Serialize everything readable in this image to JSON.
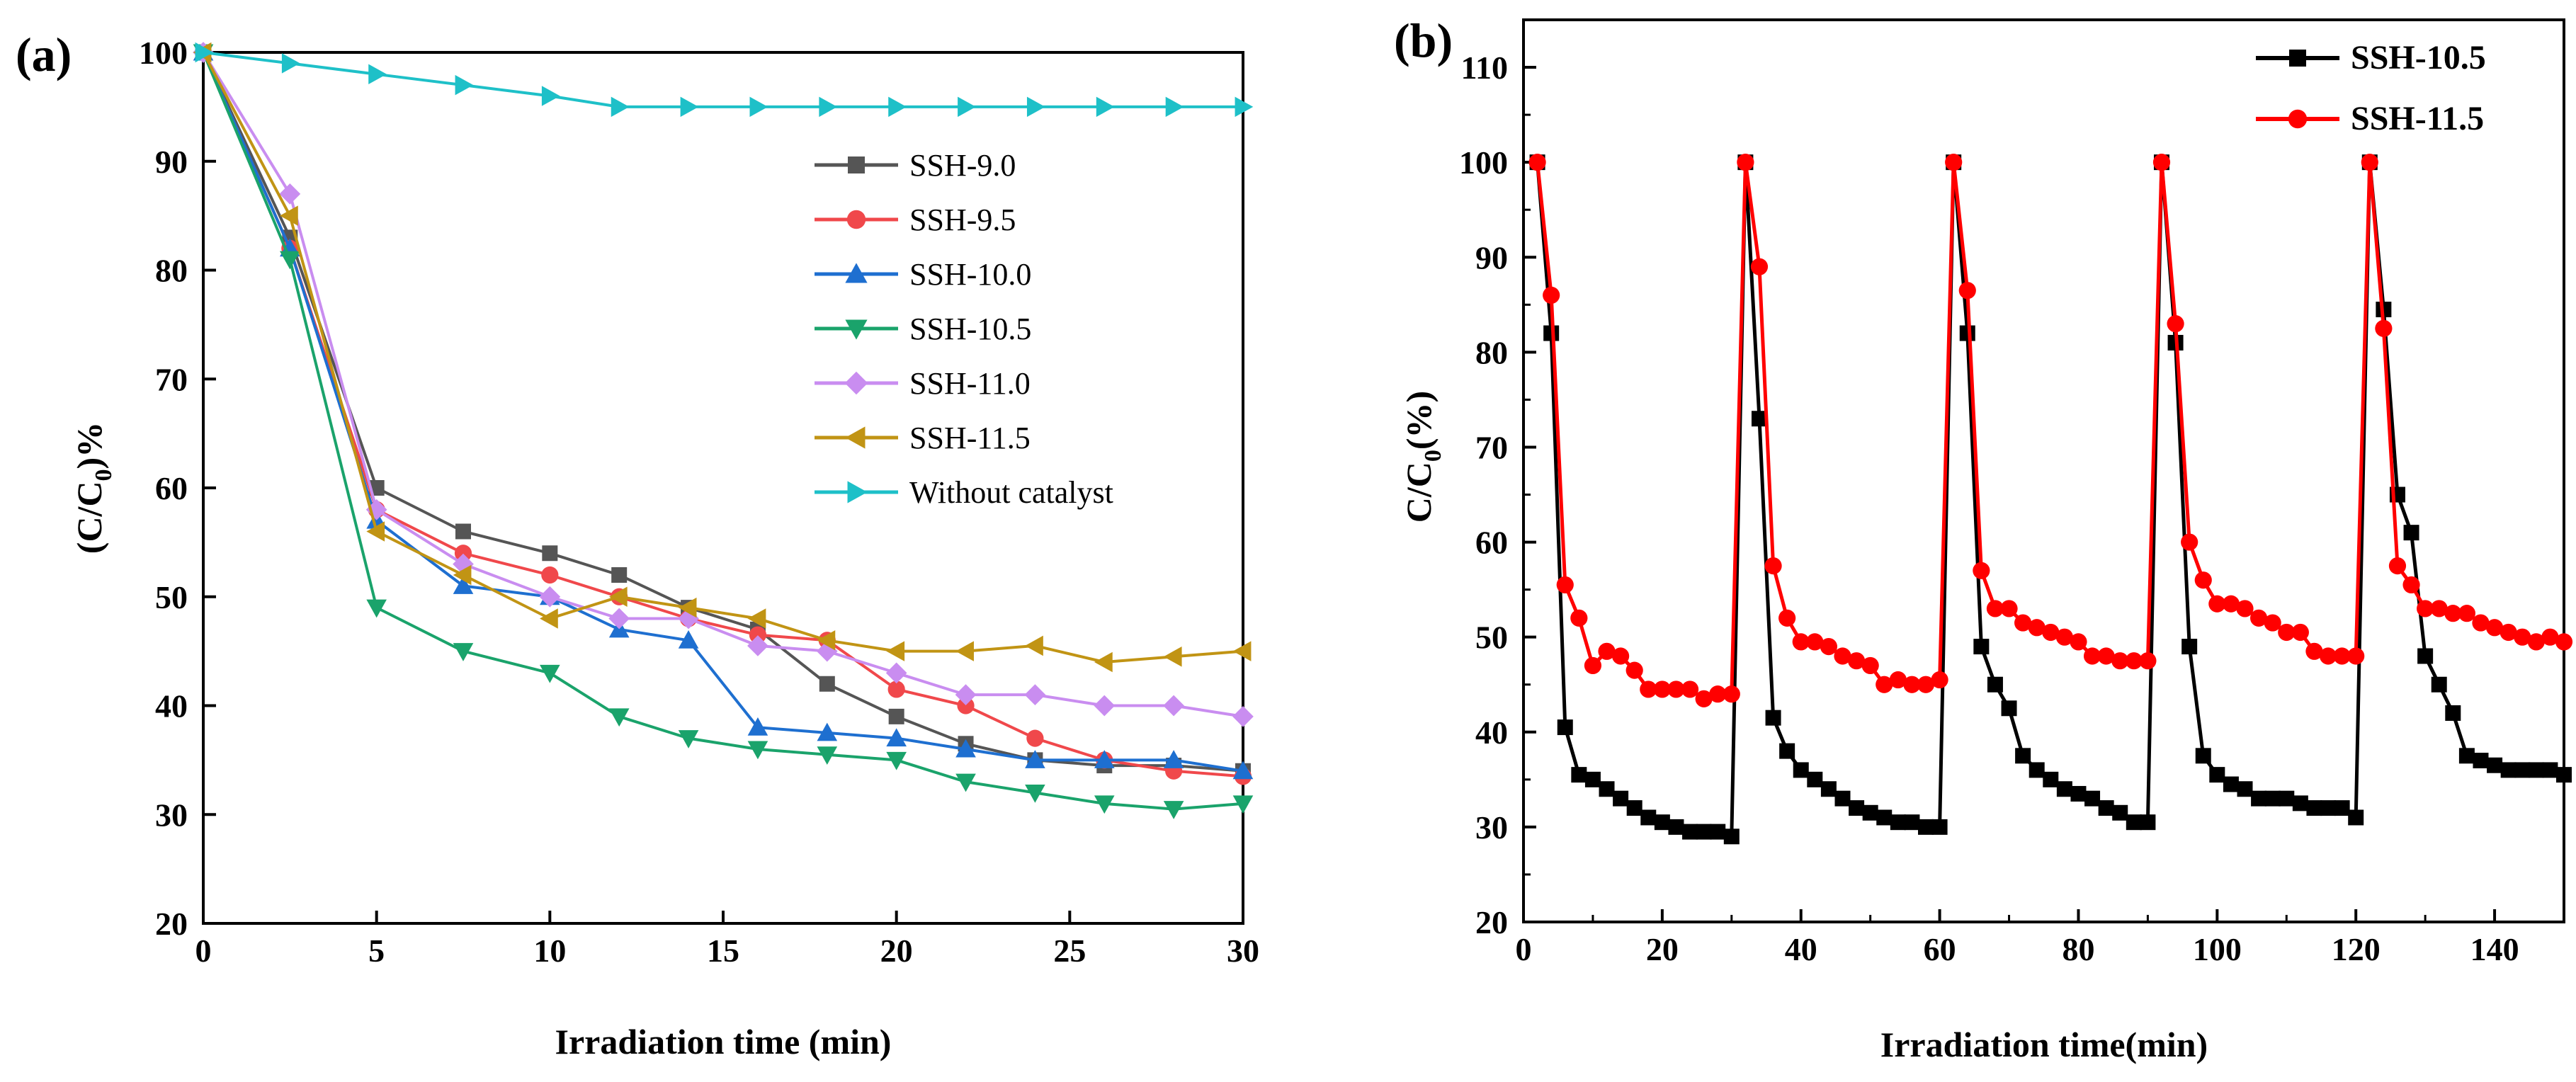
{
  "chart_data": [
    {
      "panel": "(a)",
      "type": "line",
      "title": "",
      "xlabel": "Irradiation time (min)",
      "ylabel": "(C/C0)%",
      "ylabel_parts": [
        "(C/C",
        "0",
        ")%"
      ],
      "xlim": [
        0,
        30
      ],
      "ylim": [
        20,
        100
      ],
      "xticks": [
        0,
        5,
        10,
        15,
        20,
        25,
        30
      ],
      "yticks": [
        20,
        30,
        40,
        50,
        60,
        70,
        80,
        90,
        100
      ],
      "grid": false,
      "legend_position": "right",
      "series": [
        {
          "name": "SSH-9.0",
          "color": "#555555",
          "marker": "square",
          "x": [
            0,
            2.5,
            5,
            7.5,
            10,
            12,
            14,
            16,
            18,
            20,
            22,
            24,
            26,
            28,
            30
          ],
          "y": [
            100,
            83,
            60,
            56,
            54,
            52,
            49,
            47,
            42,
            39,
            36.5,
            35,
            34.5,
            34.5,
            34
          ]
        },
        {
          "name": "SSH-9.5",
          "color": "#f0484b",
          "marker": "circle",
          "x": [
            0,
            2.5,
            5,
            7.5,
            10,
            12,
            14,
            16,
            18,
            20,
            22,
            24,
            26,
            28,
            30
          ],
          "y": [
            100,
            82,
            58,
            54,
            52,
            50,
            48,
            46.5,
            46,
            41.5,
            40,
            37,
            35,
            34,
            33.5
          ]
        },
        {
          "name": "SSH-10.0",
          "color": "#1e6fd0",
          "marker": "triangle-up",
          "x": [
            0,
            2.5,
            5,
            7.5,
            10,
            12,
            14,
            16,
            18,
            20,
            22,
            24,
            26,
            28,
            30
          ],
          "y": [
            100,
            82,
            57,
            51,
            50,
            47,
            46,
            38,
            37.5,
            37,
            36,
            35,
            35,
            35,
            34
          ]
        },
        {
          "name": "SSH-10.5",
          "color": "#1aa36b",
          "marker": "triangle-down",
          "x": [
            0,
            2.5,
            5,
            7.5,
            10,
            12,
            14,
            16,
            18,
            20,
            22,
            24,
            26,
            28,
            30
          ],
          "y": [
            100,
            81,
            49,
            45,
            43,
            39,
            37,
            36,
            35.5,
            35,
            33,
            32,
            31,
            30.5,
            31
          ]
        },
        {
          "name": "SSH-11.0",
          "color": "#c98df0",
          "marker": "diamond",
          "x": [
            0,
            2.5,
            5,
            7.5,
            10,
            12,
            14,
            16,
            18,
            20,
            22,
            24,
            26,
            28,
            30
          ],
          "y": [
            100,
            87,
            58,
            53,
            50,
            48,
            48,
            45.5,
            45,
            43,
            41,
            41,
            40,
            40,
            39
          ]
        },
        {
          "name": "SSH-11.5",
          "color": "#c19414",
          "marker": "triangle-left",
          "x": [
            0,
            2.5,
            5,
            7.5,
            10,
            12,
            14,
            16,
            18,
            20,
            22,
            24,
            26,
            28,
            30
          ],
          "y": [
            100,
            85,
            56,
            52,
            48,
            50,
            49,
            48,
            46,
            45,
            45,
            45.5,
            44,
            44.5,
            45
          ]
        },
        {
          "name": "Without catalyst",
          "color": "#1ec0c8",
          "marker": "triangle-right",
          "x": [
            0,
            2.5,
            5,
            7.5,
            10,
            12,
            14,
            16,
            18,
            20,
            22,
            24,
            26,
            28,
            30
          ],
          "y": [
            100,
            99,
            98,
            97,
            96,
            95,
            95,
            95,
            95,
            95,
            95,
            95,
            95,
            95,
            95
          ]
        }
      ]
    },
    {
      "panel": "(b)",
      "type": "line",
      "title": "",
      "xlabel": "Irradiation time(min)",
      "ylabel": "C/C0(%)",
      "ylabel_parts": [
        "C/C",
        "0",
        "(%)"
      ],
      "xlim": [
        0,
        150
      ],
      "ylim": [
        20,
        115
      ],
      "xticks": [
        0,
        20,
        40,
        60,
        80,
        100,
        120,
        140
      ],
      "yticks": [
        20,
        30,
        40,
        50,
        60,
        70,
        80,
        90,
        100,
        110
      ],
      "grid": false,
      "legend_position": "top-right",
      "series": [
        {
          "name": "SSH-10.5",
          "color": "#000000",
          "marker": "square",
          "x": [
            2,
            4,
            6,
            8,
            10,
            12,
            14,
            16,
            18,
            20,
            22,
            24,
            26,
            28,
            30,
            32,
            34,
            36,
            38,
            40,
            42,
            44,
            46,
            48,
            50,
            52,
            54,
            56,
            58,
            60,
            62,
            64,
            66,
            68,
            70,
            72,
            74,
            76,
            78,
            80,
            82,
            84,
            86,
            88,
            90,
            92,
            94,
            96,
            98,
            100,
            102,
            104,
            106,
            108,
            110,
            112,
            114,
            116,
            118,
            120,
            122,
            124,
            126,
            128,
            130,
            132,
            134,
            136,
            138,
            140,
            142,
            144,
            146,
            148,
            150
          ],
          "y": [
            100,
            82,
            40.5,
            35.5,
            35,
            34,
            33,
            32,
            31,
            30.5,
            30,
            29.5,
            29.5,
            29.5,
            29,
            100,
            73,
            41.5,
            38,
            36,
            35,
            34,
            33,
            32,
            31.5,
            31,
            30.5,
            30.5,
            30,
            30,
            100,
            82,
            49,
            45,
            42.5,
            37.5,
            36,
            35,
            34,
            33.5,
            33,
            32,
            31.5,
            30.5,
            30.5,
            100,
            81,
            49,
            37.5,
            35.5,
            34.5,
            34,
            33,
            33,
            33,
            32.5,
            32,
            32,
            32,
            31,
            100,
            84.5,
            65,
            61,
            48,
            45,
            42,
            37.5,
            37,
            36.5,
            36,
            36,
            36,
            36,
            35.5
          ]
        },
        {
          "name": "SSH-11.5",
          "color": "#ff0000",
          "marker": "circle",
          "x": [
            2,
            4,
            6,
            8,
            10,
            12,
            14,
            16,
            18,
            20,
            22,
            24,
            26,
            28,
            30,
            32,
            34,
            36,
            38,
            40,
            42,
            44,
            46,
            48,
            50,
            52,
            54,
            56,
            58,
            60,
            62,
            64,
            66,
            68,
            70,
            72,
            74,
            76,
            78,
            80,
            82,
            84,
            86,
            88,
            90,
            92,
            94,
            96,
            98,
            100,
            102,
            104,
            106,
            108,
            110,
            112,
            114,
            116,
            118,
            120,
            122,
            124,
            126,
            128,
            130,
            132,
            134,
            136,
            138,
            140,
            142,
            144,
            146,
            148,
            150
          ],
          "y": [
            100,
            86,
            55.5,
            52,
            47,
            48.5,
            48,
            46.5,
            44.5,
            44.5,
            44.5,
            44.5,
            43.5,
            44,
            44,
            100,
            89,
            57.5,
            52,
            49.5,
            49.5,
            49,
            48,
            47.5,
            47,
            45,
            45.5,
            45,
            45,
            45.5,
            100,
            86.5,
            57,
            53,
            53,
            51.5,
            51,
            50.5,
            50,
            49.5,
            48,
            48,
            47.5,
            47.5,
            47.5,
            100,
            83,
            60,
            56,
            53.5,
            53.5,
            53,
            52,
            51.5,
            50.5,
            50.5,
            48.5,
            48,
            48,
            48,
            100,
            82.5,
            57.5,
            55.5,
            53,
            53,
            52.5,
            52.5,
            51.5,
            51,
            50.5,
            50,
            49.5,
            50,
            49.5
          ]
        }
      ]
    }
  ]
}
